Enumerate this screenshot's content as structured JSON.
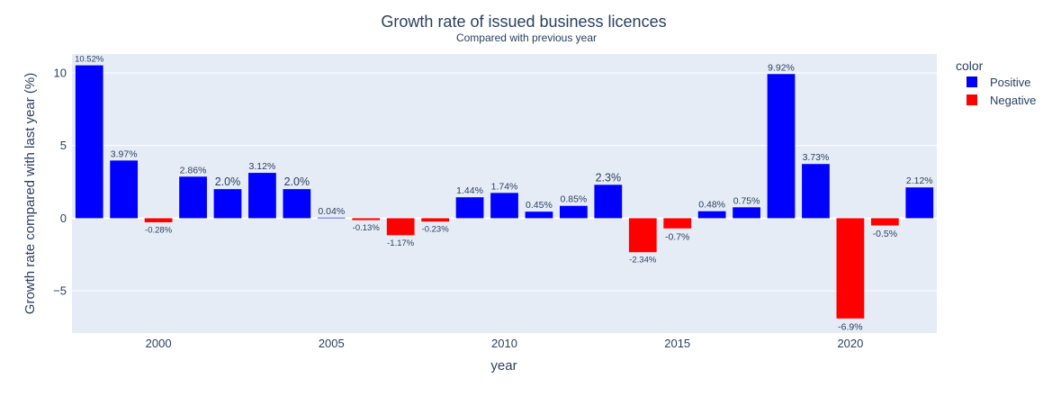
{
  "colors": {
    "plot_bg": "#E5ECF6",
    "grid": "#ffffff",
    "text": "#2a3f5f",
    "positive": "#0000FF",
    "negative": "#FF0000"
  },
  "chart_data": {
    "type": "bar",
    "title": "Growth rate of issued business licences",
    "subtitle": "Compared with previous year",
    "xlabel": "year",
    "ylabel": "Growth rate compared with last year (%)",
    "xlim": [
      1997.5,
      2022.5
    ],
    "ylim": [
      -7.9,
      11.3
    ],
    "x_ticks": [
      2000,
      2005,
      2010,
      2015,
      2020
    ],
    "y_ticks": [
      -5,
      0,
      5,
      10
    ],
    "y_tick_labels": [
      "−5",
      "0",
      "5",
      "10"
    ],
    "grid": true,
    "legend_position": "right",
    "legend": {
      "title": "color",
      "entries": [
        {
          "name": "Positive",
          "color": "#0000FF"
        },
        {
          "name": "Negative",
          "color": "#FF0000"
        }
      ]
    },
    "x": [
      1998,
      1999,
      2000,
      2001,
      2002,
      2003,
      2004,
      2005,
      2006,
      2007,
      2008,
      2009,
      2010,
      2011,
      2012,
      2013,
      2014,
      2015,
      2016,
      2017,
      2018,
      2019,
      2020,
      2021,
      2022
    ],
    "values": [
      10.52,
      3.97,
      -0.28,
      2.86,
      2.0,
      3.12,
      2.0,
      0.04,
      -0.13,
      -1.17,
      -0.23,
      1.44,
      1.74,
      0.45,
      0.85,
      2.3,
      -2.34,
      -0.7,
      0.48,
      0.75,
      9.92,
      3.73,
      -6.9,
      -0.5,
      2.12
    ],
    "labels": [
      "10.52%",
      "3.97%",
      "-0.28%",
      "2.86%",
      "2.0%",
      "3.12%",
      "2.0%",
      "0.04%",
      "-0.13%",
      "-1.17%",
      "-0.23%",
      "1.44%",
      "1.74%",
      "0.45%",
      "0.85%",
      "2.3%",
      "-2.34%",
      "-0.7%",
      "0.48%",
      "0.75%",
      "9.92%",
      "3.73%",
      "-6.9%",
      "-0.5%",
      "2.12%"
    ]
  }
}
